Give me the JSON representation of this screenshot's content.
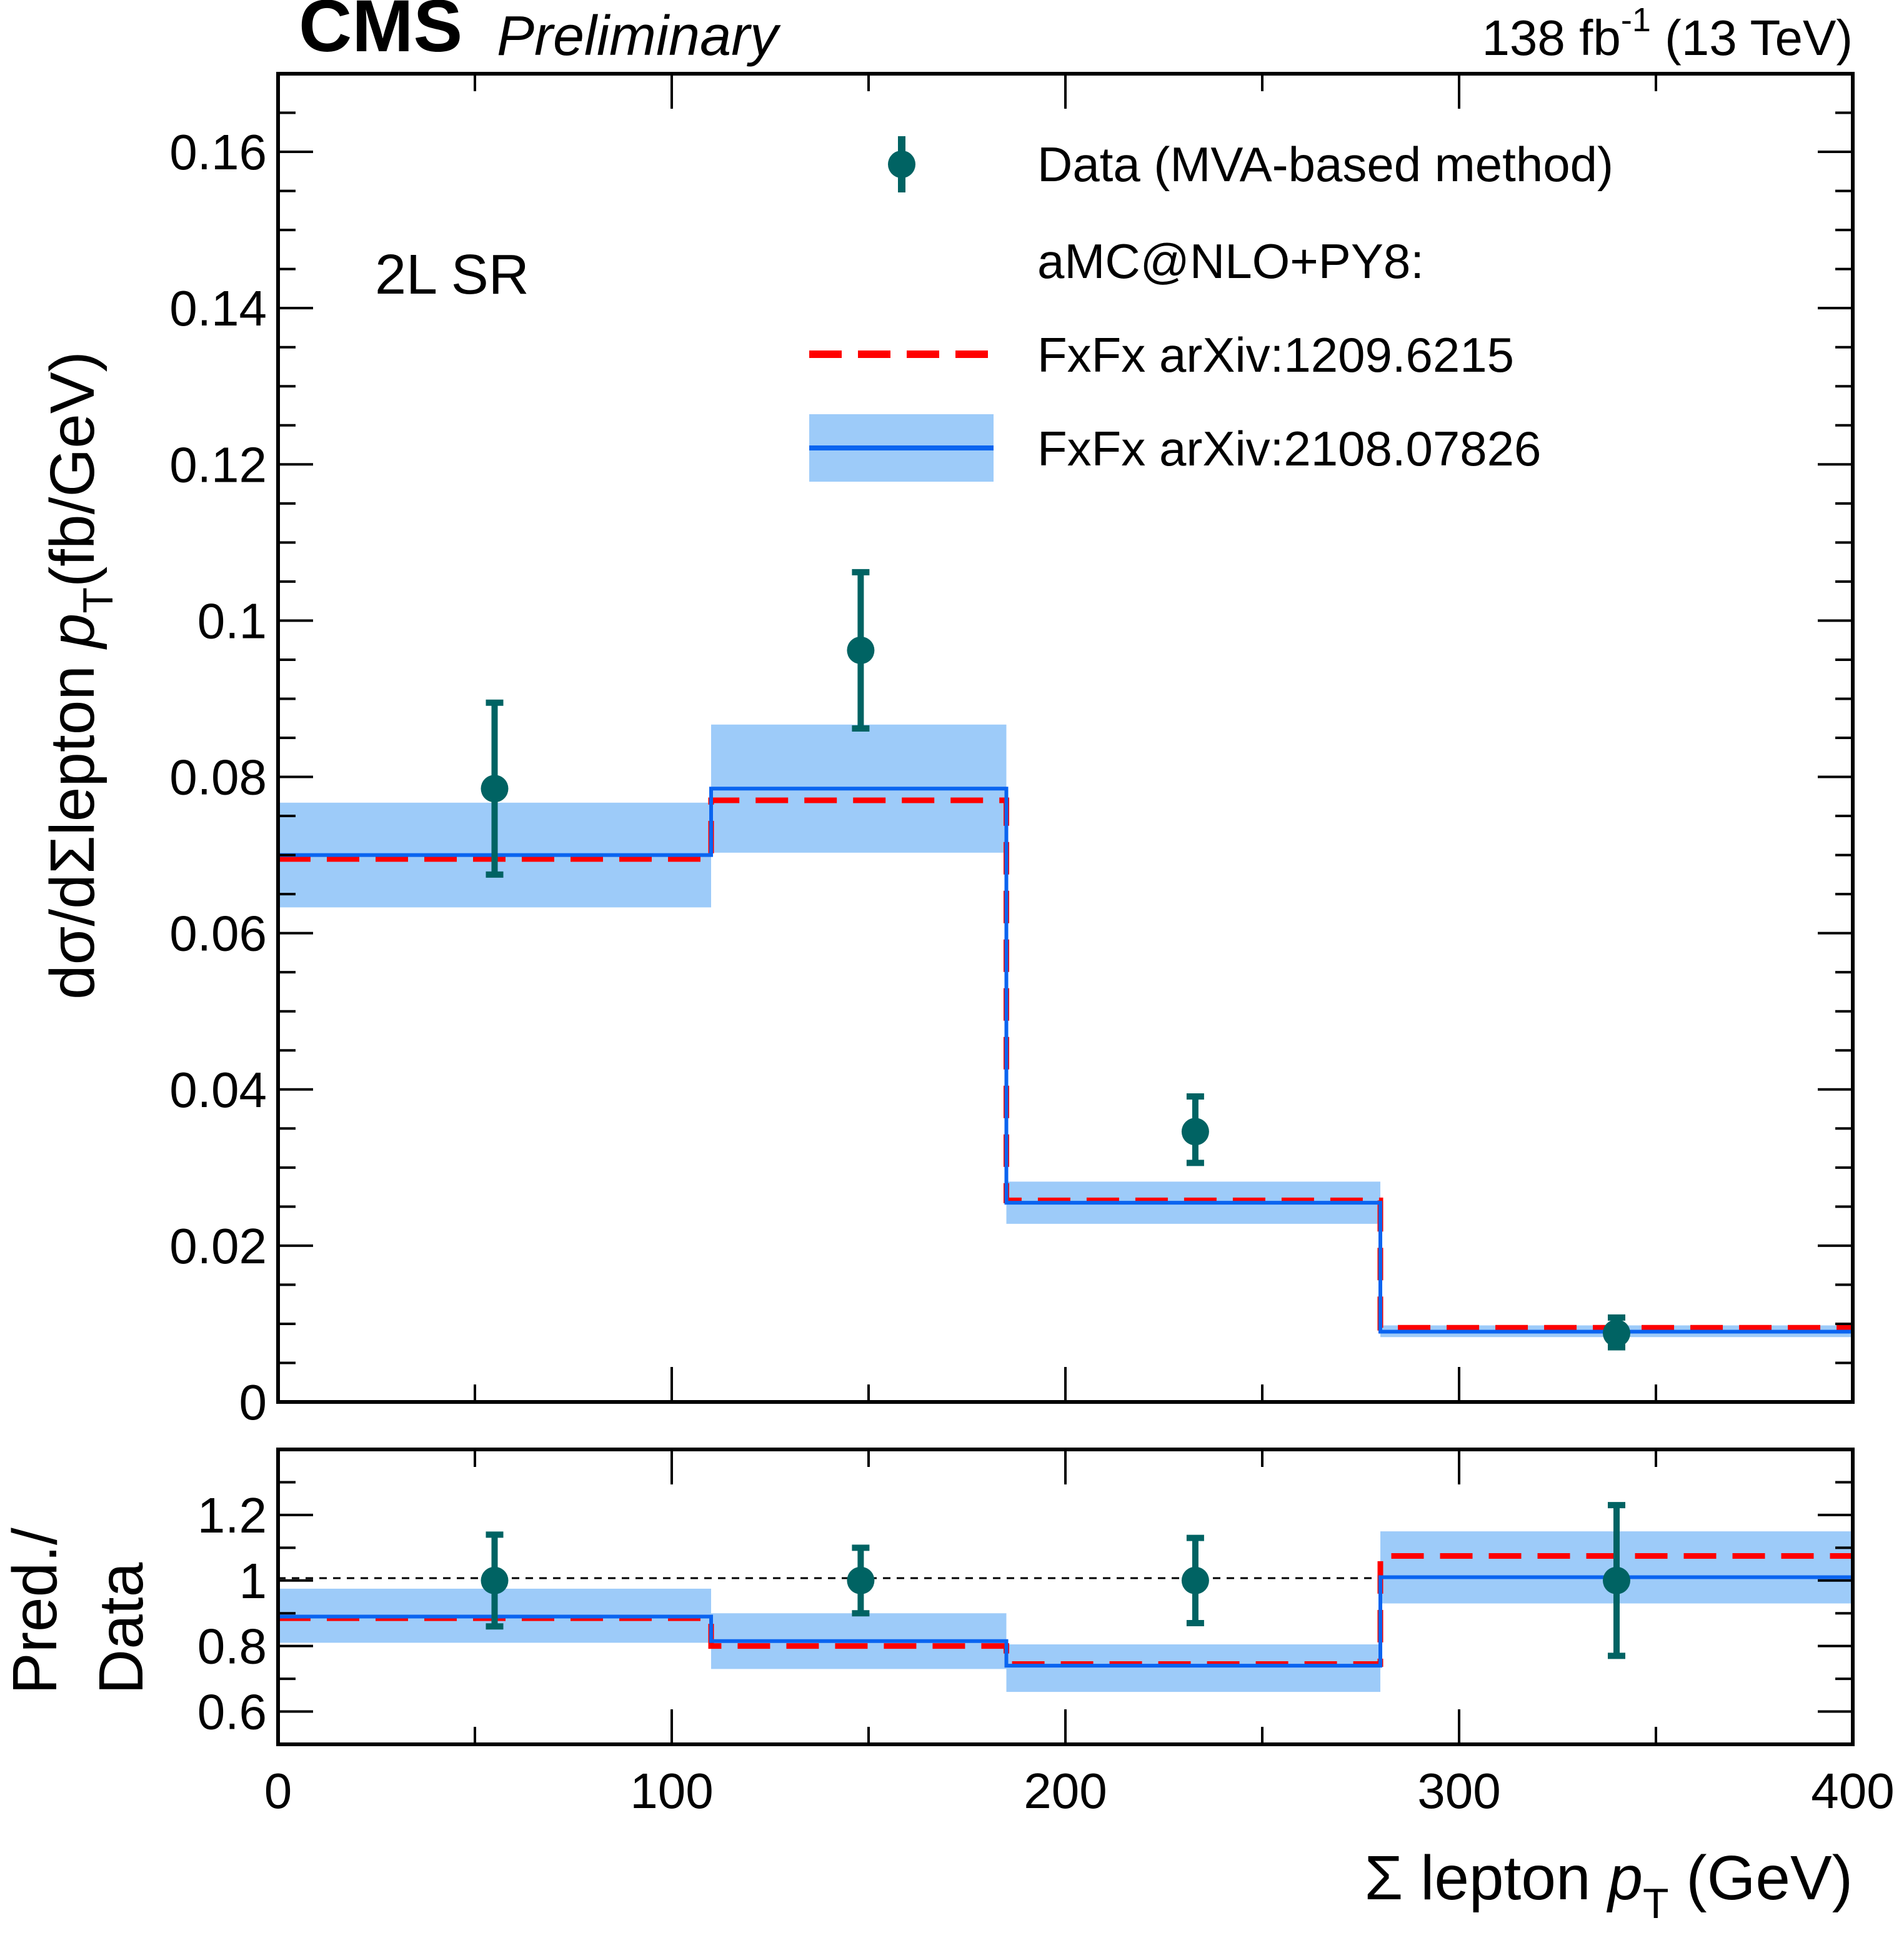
{
  "header": {
    "experiment": "CMS",
    "status": "Preliminary",
    "lumi_prefix": "138 fb",
    "lumi_exponent": "-1",
    "lumi_suffix": " (13 TeV)"
  },
  "region_label": "2L SR",
  "axes": {
    "x_title": {
      "main": "Σ lepton ",
      "var": "p",
      "sub": "T",
      "unit": " (GeV)"
    },
    "y_title": {
      "part1": "dσ/dΣlepton  ",
      "var": "p",
      "sub": "T",
      "unit": "(fb/GeV)"
    },
    "ratio_title_line1": "Pred./",
    "ratio_title_line2": "Data",
    "x_ticks": [
      "0",
      "100",
      "200",
      "300",
      "400"
    ],
    "y_ticks": [
      "0",
      "0.02",
      "0.04",
      "0.06",
      "0.08",
      "0.1",
      "0.12",
      "0.14",
      "0.16"
    ],
    "ratio_ticks": [
      "0.6",
      "0.8",
      "1",
      "1.2"
    ]
  },
  "legend": {
    "data": "Data (MVA-based method)",
    "generator": "aMC@NLO+PY8:",
    "red": "FxFx arXiv:1209.6215",
    "blue": "FxFx arXiv:2108.07826"
  },
  "colors": {
    "data": "#006363",
    "red": "#ff0000",
    "blue": "#0a64f0",
    "band": "#9dcbf9"
  },
  "chart_data": {
    "type": "step-histogram with data points and ratio panel",
    "title": "",
    "xlabel": "Σ lepton pT (GeV)",
    "ylabel": "dσ/dΣlepton pT (fb/GeV)",
    "xlim": [
      0,
      400
    ],
    "ylim": [
      0,
      0.17
    ],
    "ratio_ylim": [
      0.5,
      1.4
    ],
    "bin_edges": [
      0,
      110,
      185,
      280,
      400
    ],
    "data": {
      "name": "Data (MVA-based method)",
      "x": [
        55,
        148,
        233,
        340
      ],
      "y": [
        0.0785,
        0.0962,
        0.0346,
        0.0088
      ],
      "err_up": [
        0.011,
        0.01,
        0.0045,
        0.002
      ],
      "err_down": [
        0.011,
        0.01,
        0.004,
        0.0018
      ]
    },
    "series": [
      {
        "name": "FxFx arXiv:1209.6215",
        "style": "dashed",
        "values": [
          0.0695,
          0.077,
          0.0258,
          0.0095
        ]
      },
      {
        "name": "FxFx arXiv:2108.07826",
        "style": "solid",
        "values": [
          0.07,
          0.0785,
          0.0255,
          0.009
        ],
        "band_low": [
          0.0633,
          0.0703,
          0.0228,
          0.0083
        ],
        "band_high": [
          0.0767,
          0.0867,
          0.0282,
          0.0098
        ]
      }
    ],
    "ratio": {
      "data": {
        "y": [
          1.0,
          1.0,
          1.0,
          1.0
        ],
        "err_up": [
          0.14,
          0.1,
          0.13,
          0.23
        ],
        "err_down": [
          0.14,
          0.1,
          0.13,
          0.23
        ]
      },
      "red": [
        0.885,
        0.8,
        0.745,
        1.075
      ],
      "blue": [
        0.89,
        0.815,
        0.74,
        1.01
      ],
      "band_low": [
        0.81,
        0.73,
        0.66,
        0.93
      ],
      "band_high": [
        0.975,
        0.9,
        0.805,
        1.15
      ]
    }
  }
}
